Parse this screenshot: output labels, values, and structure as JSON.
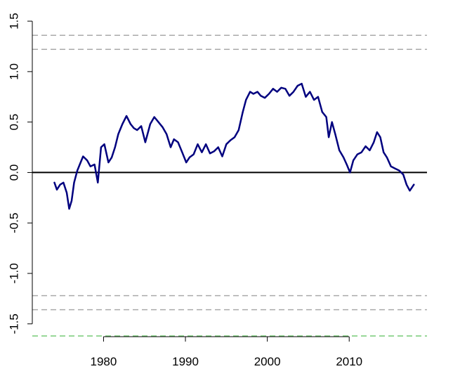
{
  "chart_data": {
    "type": "line",
    "title": "",
    "xlabel": "",
    "ylabel": "",
    "xlim": [
      1971.3,
      2019.5
    ],
    "ylim": [
      -1.62,
      1.64
    ],
    "x_ticks": [
      1980,
      1990,
      2000,
      2010
    ],
    "x_tick_labels": [
      "1980",
      "1990",
      "2000",
      "2010"
    ],
    "y_ticks": [
      -1.5,
      -1.0,
      -0.5,
      0.0,
      0.5,
      1.0,
      1.5
    ],
    "y_tick_labels": [
      "-1.5",
      "-1.0",
      "-0.5",
      "0.0",
      "0.5",
      "1.0",
      "1.5"
    ],
    "grid": false,
    "legend": "none",
    "reference_lines": [
      {
        "y": 0.0,
        "style": "solid",
        "color": "#000000"
      },
      {
        "y": 1.36,
        "style": "dashed",
        "color": "#aaaaaa"
      },
      {
        "y": 1.22,
        "style": "dashed",
        "color": "#aaaaaa"
      },
      {
        "y": -1.22,
        "style": "dashed",
        "color": "#aaaaaa"
      },
      {
        "y": -1.36,
        "style": "dashed",
        "color": "#aaaaaa"
      },
      {
        "y": -1.62,
        "style": "dashed",
        "color": "#77cc77"
      }
    ],
    "series": [
      {
        "color": "#00007f",
        "x": [
          1974.0,
          1974.3,
          1974.7,
          1975.1,
          1975.5,
          1975.8,
          1976.1,
          1976.4,
          1976.8,
          1977.1,
          1977.5,
          1978.0,
          1978.4,
          1978.9,
          1979.3,
          1979.7,
          1980.1,
          1980.6,
          1981.0,
          1981.4,
          1981.8,
          1982.3,
          1982.8,
          1983.3,
          1983.7,
          1984.1,
          1984.6,
          1985.1,
          1985.7,
          1986.2,
          1986.7,
          1987.2,
          1987.7,
          1988.2,
          1988.6,
          1989.1,
          1989.6,
          1990.1,
          1990.5,
          1991.0,
          1991.5,
          1992.0,
          1992.5,
          1993.0,
          1993.5,
          1994.0,
          1994.5,
          1995.0,
          1995.5,
          1996.0,
          1996.5,
          1997.0,
          1997.4,
          1997.9,
          1998.3,
          1998.8,
          1999.2,
          1999.7,
          2000.2,
          2000.7,
          2001.2,
          2001.7,
          2002.2,
          2002.7,
          2003.2,
          2003.7,
          2004.2,
          2004.7,
          2005.2,
          2005.7,
          2006.2,
          2006.7,
          2007.2,
          2007.5,
          2007.9,
          2008.3,
          2008.8,
          2009.3,
          2009.7,
          2010.1,
          2010.5,
          2011.0,
          2011.5,
          2012.0,
          2012.5,
          2013.0,
          2013.4,
          2013.8,
          2014.2,
          2014.6,
          2015.1,
          2015.6,
          2016.1,
          2016.6,
          2017.0,
          2017.4,
          2017.9
        ],
        "y": [
          -0.1,
          -0.17,
          -0.12,
          -0.1,
          -0.2,
          -0.36,
          -0.28,
          -0.1,
          0.02,
          0.08,
          0.16,
          0.12,
          0.06,
          0.08,
          -0.1,
          0.25,
          0.28,
          0.1,
          0.15,
          0.25,
          0.38,
          0.48,
          0.56,
          0.48,
          0.44,
          0.42,
          0.46,
          0.3,
          0.48,
          0.55,
          0.5,
          0.45,
          0.38,
          0.25,
          0.33,
          0.3,
          0.2,
          0.1,
          0.15,
          0.18,
          0.28,
          0.2,
          0.28,
          0.19,
          0.21,
          0.25,
          0.16,
          0.28,
          0.32,
          0.35,
          0.42,
          0.6,
          0.72,
          0.8,
          0.78,
          0.8,
          0.76,
          0.74,
          0.78,
          0.83,
          0.8,
          0.84,
          0.83,
          0.76,
          0.8,
          0.86,
          0.88,
          0.75,
          0.8,
          0.72,
          0.75,
          0.6,
          0.55,
          0.35,
          0.5,
          0.38,
          0.22,
          0.15,
          0.08,
          0.0,
          0.12,
          0.18,
          0.2,
          0.26,
          0.22,
          0.3,
          0.4,
          0.35,
          0.2,
          0.15,
          0.06,
          0.04,
          0.02,
          -0.02,
          -0.12,
          -0.18,
          -0.12
        ]
      }
    ]
  }
}
